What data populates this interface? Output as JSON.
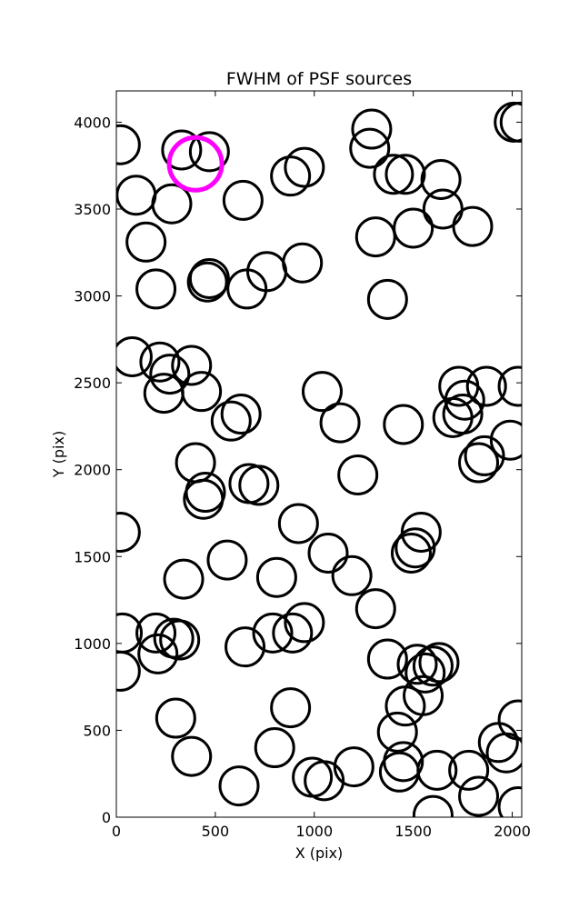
{
  "chart_data": {
    "type": "scatter",
    "title": "FWHM of PSF sources",
    "xlabel": "X (pix)",
    "ylabel": "Y (pix)",
    "xlim": [
      0,
      2048
    ],
    "ylim": [
      0,
      4180
    ],
    "xticks": [
      0,
      500,
      1000,
      1500,
      2000
    ],
    "yticks": [
      0,
      500,
      1000,
      1500,
      2000,
      2500,
      3000,
      3500,
      4000
    ],
    "grid": false,
    "marker_color": "#000000",
    "highlight_color": "#ff00ff",
    "series": [
      {
        "points": [
          [
            20,
            3870
          ],
          [
            330,
            3840
          ],
          [
            470,
            3830
          ],
          [
            100,
            3580
          ],
          [
            280,
            3530
          ],
          [
            640,
            3550
          ],
          [
            880,
            3690
          ],
          [
            950,
            3740
          ],
          [
            1280,
            3850
          ],
          [
            1290,
            3960
          ],
          [
            1400,
            3700
          ],
          [
            1460,
            3700
          ],
          [
            1640,
            3670
          ],
          [
            1650,
            3500
          ],
          [
            1800,
            3400
          ],
          [
            1500,
            3390
          ],
          [
            1310,
            3340
          ],
          [
            2010,
            4000
          ],
          [
            2040,
            4000
          ],
          [
            150,
            3310
          ],
          [
            200,
            3040
          ],
          [
            460,
            3080
          ],
          [
            470,
            3100
          ],
          [
            660,
            3040
          ],
          [
            760,
            3140
          ],
          [
            940,
            3190
          ],
          [
            1370,
            2980
          ],
          [
            80,
            2650
          ],
          [
            220,
            2620
          ],
          [
            270,
            2550
          ],
          [
            380,
            2600
          ],
          [
            240,
            2440
          ],
          [
            430,
            2450
          ],
          [
            580,
            2280
          ],
          [
            630,
            2320
          ],
          [
            1040,
            2450
          ],
          [
            1130,
            2270
          ],
          [
            1450,
            2260
          ],
          [
            1700,
            2300
          ],
          [
            1730,
            2480
          ],
          [
            1760,
            2400
          ],
          [
            1750,
            2320
          ],
          [
            1870,
            2480
          ],
          [
            2030,
            2480
          ],
          [
            1990,
            2170
          ],
          [
            1860,
            2080
          ],
          [
            1830,
            2040
          ],
          [
            400,
            2040
          ],
          [
            450,
            1870
          ],
          [
            440,
            1830
          ],
          [
            670,
            1920
          ],
          [
            720,
            1910
          ],
          [
            1220,
            1970
          ],
          [
            20,
            1640
          ],
          [
            560,
            1480
          ],
          [
            920,
            1690
          ],
          [
            1070,
            1520
          ],
          [
            1190,
            1390
          ],
          [
            1310,
            1200
          ],
          [
            1540,
            1640
          ],
          [
            1510,
            1550
          ],
          [
            1490,
            1520
          ],
          [
            340,
            1370
          ],
          [
            810,
            1380
          ],
          [
            30,
            1060
          ],
          [
            200,
            1060
          ],
          [
            210,
            940
          ],
          [
            290,
            1030
          ],
          [
            320,
            1020
          ],
          [
            650,
            980
          ],
          [
            790,
            1060
          ],
          [
            890,
            1060
          ],
          [
            950,
            1120
          ],
          [
            20,
            840
          ],
          [
            300,
            570
          ],
          [
            380,
            350
          ],
          [
            620,
            180
          ],
          [
            880,
            630
          ],
          [
            800,
            400
          ],
          [
            990,
            230
          ],
          [
            1050,
            210
          ],
          [
            1200,
            290
          ],
          [
            1370,
            910
          ],
          [
            1520,
            880
          ],
          [
            1560,
            830
          ],
          [
            1600,
            870
          ],
          [
            1630,
            890
          ],
          [
            1550,
            700
          ],
          [
            1460,
            640
          ],
          [
            1420,
            490
          ],
          [
            1450,
            320
          ],
          [
            1430,
            260
          ],
          [
            1620,
            270
          ],
          [
            1600,
            10
          ],
          [
            1780,
            270
          ],
          [
            1830,
            120
          ],
          [
            1930,
            430
          ],
          [
            1970,
            370
          ],
          [
            2030,
            560
          ],
          [
            2030,
            60
          ]
        ]
      },
      {
        "points": [
          [
            400,
            3760
          ]
        ]
      }
    ]
  }
}
